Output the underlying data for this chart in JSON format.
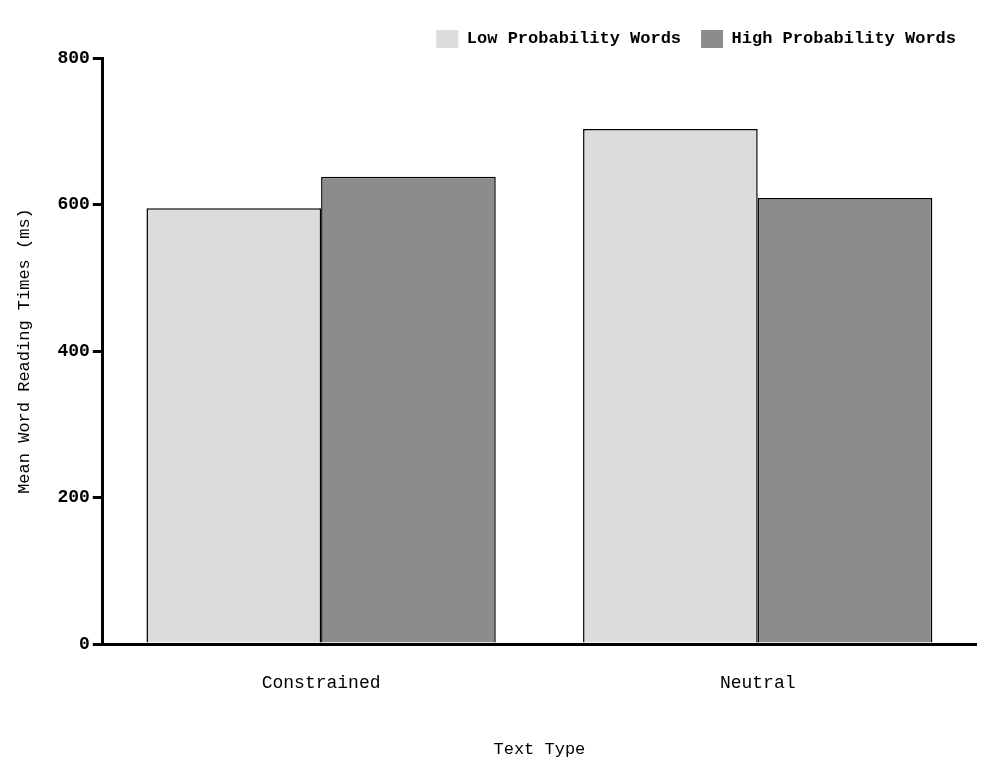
{
  "chart_data": {
    "type": "bar",
    "xlabel": "Text Type",
    "ylabel": "Mean Word Reading Times (ms)",
    "categories": [
      "Constrained",
      "Neutral"
    ],
    "series": [
      {
        "name": "Low Probability Words",
        "color": "#dcdcdc",
        "values": [
          595,
          703
        ]
      },
      {
        "name": "High Probability Words",
        "color": "#8c8c8c",
        "values": [
          638,
          609
        ]
      }
    ],
    "ylim": [
      0,
      800
    ],
    "yticks": [
      0,
      200,
      400,
      600,
      800
    ],
    "grid": false,
    "legend": "top right"
  }
}
